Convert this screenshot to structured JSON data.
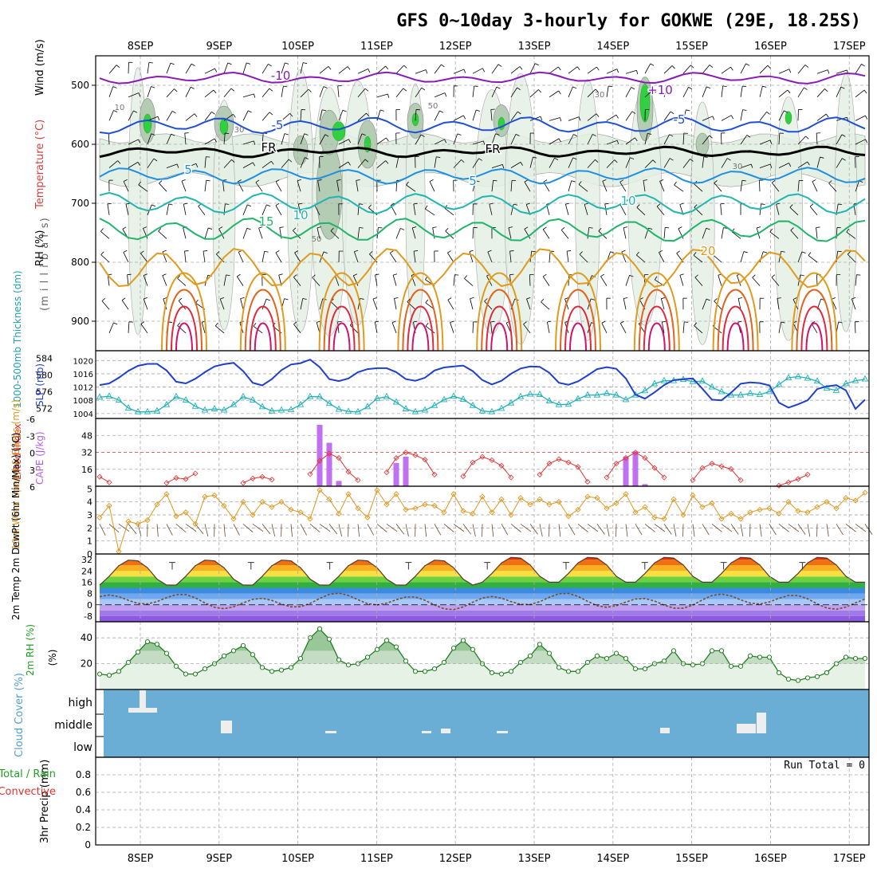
{
  "title": "GFS 0~10day 3-hourly for GOKWE (29E, 18.25S)",
  "day_labels": [
    "8SEP",
    "9SEP",
    "10SEP",
    "11SEP",
    "12SEP",
    "13SEP",
    "14SEP",
    "15SEP",
    "16SEP",
    "17SEP"
  ],
  "run_total_text": "Run Total = 0",
  "colors": {
    "temp_minus10": "#8a1ab8",
    "temp_minus5": "#1f4fd6",
    "temp_5": "#1f8fe0",
    "temp_10": "#20b5b0",
    "temp_15": "#20b46a",
    "temp_20": "#e09a1c",
    "temp_25": "#e0641c",
    "temp_30": "#e0283c",
    "rh_light": "#e4f0e4",
    "rh_mid": "#b4ccb4",
    "rh_dark": "#6e8a6e",
    "rh_green": "#30d040",
    "slp": "#1f3fd0",
    "thickness": "#20b0b8",
    "cape": "#c070f0",
    "lifted_index": "#e03030",
    "wind10m": "#e0961c",
    "cloud": "#6aaed6",
    "precip_total": "#20a020",
    "precip_conv": "#e03030"
  },
  "chart_data": [
    {
      "type": "heatmap",
      "panel": "upper-air",
      "ylabel_rh": "RH (%)",
      "ylabel_temp": "Temperature (°C)",
      "ylabel_wind": "Wind (m/s)",
      "ylabel_pressure": "(m i l l i b a r s)",
      "y_ticks": [
        500,
        600,
        700,
        800,
        900
      ],
      "ylim": [
        950,
        450
      ],
      "contour_labels": [
        "-10",
        "+10",
        "-5",
        "-5",
        "FR",
        "FR",
        "5",
        "5",
        "10",
        "10",
        "15",
        "20",
        "10",
        "30",
        "50",
        "50",
        "30",
        "30",
        "50"
      ],
      "isotherms": [
        {
          "name": "-10",
          "mean": 488,
          "amp": 6
        },
        {
          "name": "-5",
          "mean": 568,
          "amp": 10
        },
        {
          "name": "FR",
          "mean": 613,
          "amp": 5
        },
        {
          "name": "5",
          "mean": 653,
          "amp": 10
        },
        {
          "name": "10",
          "mean": 700,
          "amp": 14
        },
        {
          "name": "15",
          "mean": 745,
          "amp": 16
        },
        {
          "name": "20",
          "mean": 810,
          "amp": 30
        }
      ]
    },
    {
      "type": "line",
      "panel": "slp-thickness",
      "ylabel_left": "1000-500mb Thickness (dm)",
      "ylabel_right": "SLP (mb)",
      "thickness_ticks": [
        572,
        576,
        580,
        584
      ],
      "slp_ticks": [
        1004,
        1008,
        1012,
        1016,
        1020
      ],
      "x": [
        0,
        1,
        2,
        3,
        4,
        5,
        6,
        7,
        8,
        9,
        10,
        11,
        12,
        13,
        14,
        15,
        16,
        17,
        18,
        19,
        20,
        21,
        22,
        23,
        24,
        25,
        26,
        27,
        28,
        29,
        30,
        31,
        32,
        33,
        34,
        35,
        36,
        37,
        38,
        39,
        40,
        41,
        42,
        43,
        44,
        45,
        46,
        47,
        48,
        49,
        50,
        51,
        52,
        53,
        54,
        55,
        56,
        57,
        58,
        59,
        60,
        61,
        62,
        63,
        64,
        65,
        66,
        67,
        68,
        69,
        70,
        71,
        72,
        73,
        74,
        75,
        76,
        77,
        78,
        79,
        80
      ],
      "series": [
        {
          "name": "SLP",
          "values": [
            1012.6,
            1013.1,
            1014.8,
            1016.9,
            1018.4,
            1019.0,
            1019.0,
            1017.0,
            1013.6,
            1013.1,
            1014.5,
            1016.5,
            1018.2,
            1018.9,
            1019.3,
            1016.8,
            1013.3,
            1012.5,
            1014.4,
            1017.1,
            1018.8,
            1019.2,
            1020.3,
            1018.0,
            1014.4,
            1013.8,
            1014.6,
            1016.5,
            1017.4,
            1017.7,
            1017.7,
            1016.5,
            1014.4,
            1013.9,
            1014.8,
            1017.0,
            1017.9,
            1018.2,
            1018.5,
            1016.8,
            1014.1,
            1012.8,
            1013.9,
            1016.0,
            1017.6,
            1018.2,
            1018.1,
            1016.3,
            1013.3,
            1012.7,
            1013.7,
            1015.5,
            1017.4,
            1018.0,
            1017.5,
            1014.6,
            1009.7,
            1008.5,
            1010.4,
            1012.6,
            1014.1,
            1014.4,
            1014.6,
            1011.5,
            1008.2,
            1008.0,
            1010.3,
            1013.0,
            1013.4,
            1013.2,
            1012.5,
            1007.3,
            1005.8,
            1006.8,
            1008.0,
            1011.4,
            1012.2,
            1012.6,
            1011.0,
            1005.4,
            1008.2
          ]
        },
        {
          "name": "Thickness",
          "values": [
            574.7,
            574.9,
            574.0,
            572.1,
            571.2,
            571.2,
            571.4,
            572.9,
            574.8,
            574.0,
            572.5,
            571.6,
            571.9,
            571.6,
            572.9,
            574.8,
            574.0,
            572.4,
            571.4,
            571.6,
            571.7,
            572.9,
            574.8,
            574.8,
            573.2,
            571.8,
            571.3,
            571.2,
            572.4,
            574.4,
            574.8,
            573.5,
            571.9,
            571.2,
            571.6,
            572.7,
            574.1,
            574.9,
            574.2,
            572.7,
            571.4,
            571.2,
            572.0,
            573.3,
            574.8,
            575.4,
            575.3,
            573.8,
            572.9,
            573.0,
            574.3,
            575.2,
            575.2,
            575.6,
            575.2,
            574.1,
            575.2,
            576.2,
            577.9,
            578.6,
            578.6,
            578.9,
            578.4,
            578.5,
            577.1,
            576.0,
            575.2,
            575.2,
            575.6,
            575.3,
            576.0,
            577.7,
            579.3,
            579.6,
            579.2,
            578.5,
            576.8,
            576.3,
            577.9,
            578.6,
            579.0
          ]
        }
      ]
    },
    {
      "type": "bar",
      "panel": "cape-li",
      "ylabel_left": "Lifted Index",
      "ylabel_right": "CAPE (J/kg)",
      "li_ticks": [
        "-6",
        "-3",
        "0",
        "3",
        "6"
      ],
      "cape_ticks": [
        16,
        32,
        48
      ],
      "cape_bars": [
        {
          "x": 23,
          "value": 58
        },
        {
          "x": 24,
          "value": 41
        },
        {
          "x": 25,
          "value": 5
        },
        {
          "x": 31,
          "value": 22
        },
        {
          "x": 32,
          "value": 28
        },
        {
          "x": 55,
          "value": 28
        },
        {
          "x": 56,
          "value": 33
        },
        {
          "x": 57,
          "value": 2
        }
      ],
      "li_lines": [
        {
          "x": [
            0,
            1
          ],
          "values": [
            4.4,
            5.4
          ]
        },
        {
          "x": [
            7,
            8,
            9,
            10
          ],
          "values": [
            5.5,
            4.6,
            4.8,
            3.8
          ]
        },
        {
          "x": [
            15,
            16,
            17,
            18
          ],
          "values": [
            5.5,
            4.7,
            4.4,
            4.9
          ]
        },
        {
          "x": [
            22,
            23,
            24,
            25,
            26,
            27
          ],
          "values": [
            3.9,
            1.5,
            0.2,
            1.0,
            3.5,
            5.0
          ]
        },
        {
          "x": [
            30,
            31,
            32,
            33,
            34,
            35
          ],
          "values": [
            3.6,
            1.0,
            0.0,
            0.5,
            1.3,
            4.0
          ]
        },
        {
          "x": [
            38,
            39,
            40,
            41,
            42,
            43
          ],
          "values": [
            4.3,
            1.8,
            0.8,
            1.4,
            2.4,
            4.5
          ]
        },
        {
          "x": [
            46,
            47,
            48,
            49,
            50,
            51
          ],
          "values": [
            4.0,
            2.0,
            1.2,
            1.8,
            2.6,
            5.3
          ]
        },
        {
          "x": [
            53,
            54,
            55,
            56,
            57,
            58,
            59
          ],
          "values": [
            4.5,
            2.0,
            1.0,
            0.0,
            1.0,
            2.8,
            4.5
          ]
        },
        {
          "x": [
            62,
            63,
            64,
            65,
            66,
            67
          ],
          "values": [
            5.0,
            2.8,
            2.0,
            2.5,
            3.0,
            5.0
          ]
        },
        {
          "x": [
            71,
            72,
            73,
            74
          ],
          "values": [
            6.0,
            5.4,
            4.8,
            4.0
          ]
        }
      ]
    },
    {
      "type": "line",
      "panel": "wind10m",
      "ylabel": "10m Wind Speed & Barbs (m/s)",
      "y_ticks": [
        0,
        1,
        2,
        3,
        4,
        5
      ],
      "ylim": [
        0,
        5
      ],
      "x": [
        0,
        1,
        2,
        3,
        4,
        5,
        6,
        7,
        8,
        9,
        10,
        11,
        12,
        13,
        14,
        15,
        16,
        17,
        18,
        19,
        20,
        21,
        22,
        23,
        24,
        25,
        26,
        27,
        28,
        29,
        30,
        31,
        32,
        33,
        34,
        35,
        36,
        37,
        38,
        39,
        40,
        41,
        42,
        43,
        44,
        45,
        46,
        47,
        48,
        49,
        50,
        51,
        52,
        53,
        54,
        55,
        56,
        57,
        58,
        59,
        60,
        61,
        62,
        63,
        64,
        65,
        66,
        67,
        68,
        69,
        70,
        71,
        72,
        73,
        74,
        75,
        76,
        77,
        78,
        79,
        80
      ],
      "values": [
        2.8,
        3.7,
        0.2,
        2.5,
        2.3,
        2.6,
        3.8,
        4.6,
        2.9,
        3.2,
        2.3,
        4.4,
        4.5,
        3.7,
        2.7,
        4.0,
        3.0,
        4.0,
        3.6,
        4.0,
        3.4,
        3.2,
        2.7,
        4.9,
        4.2,
        3.1,
        4.6,
        3.5,
        2.8,
        4.9,
        3.8,
        4.6,
        3.4,
        3.5,
        3.8,
        3.7,
        3.2,
        4.6,
        3.3,
        3.1,
        4.4,
        3.2,
        4.2,
        3.0,
        4.3,
        3.8,
        4.2,
        3.8,
        4.0,
        2.9,
        3.4,
        4.4,
        4.3,
        3.5,
        3.9,
        4.6,
        3.2,
        3.6,
        2.8,
        2.7,
        4.2,
        3.0,
        4.5,
        3.6,
        3.9,
        2.7,
        3.1,
        2.7,
        3.2,
        3.4,
        3.5,
        3.1,
        4.0,
        3.3,
        3.2,
        3.6,
        4.0,
        3.5,
        4.3,
        4.1,
        4.7
      ]
    },
    {
      "type": "area",
      "panel": "temp2m",
      "ylabel": "2m Temp 2m DewPt (6hr Min/Max) (°C)",
      "y_ticks": [
        -8,
        0,
        8,
        16,
        24,
        32
      ],
      "ylim": [
        -12,
        36
      ],
      "temp_min": 16,
      "temp_max": 34,
      "dewpt_min": -3,
      "dewpt_max": 8
    },
    {
      "type": "area",
      "panel": "rh2m",
      "ylabel": "2m RH (%)",
      "y_ticks": [
        20,
        40
      ],
      "ylim": [
        0,
        50
      ],
      "x": [
        0,
        1,
        2,
        3,
        4,
        5,
        6,
        7,
        8,
        9,
        10,
        11,
        12,
        13,
        14,
        15,
        16,
        17,
        18,
        19,
        20,
        21,
        22,
        23,
        24,
        25,
        26,
        27,
        28,
        29,
        30,
        31,
        32,
        33,
        34,
        35,
        36,
        37,
        38,
        39,
        40,
        41,
        42,
        43,
        44,
        45,
        46,
        47,
        48,
        49,
        50,
        51,
        52,
        53,
        54,
        55,
        56,
        57,
        58,
        59,
        60,
        61,
        62,
        63,
        64,
        65,
        66,
        67,
        68,
        69,
        70,
        71,
        72,
        73,
        74,
        75,
        76,
        77,
        78,
        79,
        80
      ],
      "values": [
        12,
        11,
        14,
        21,
        29,
        37,
        35,
        28,
        18,
        12,
        12,
        16,
        20,
        26,
        30,
        34,
        27,
        17,
        14,
        15,
        17,
        24,
        40,
        47,
        39,
        23,
        19,
        20,
        25,
        31,
        38,
        33,
        22,
        14,
        14,
        16,
        21,
        32,
        38,
        31,
        20,
        13,
        12,
        14,
        21,
        26,
        35,
        28,
        17,
        14,
        14,
        21,
        26,
        24,
        28,
        24,
        16,
        16,
        20,
        22,
        30,
        20,
        19,
        20,
        30,
        30,
        18,
        18,
        26,
        25,
        25,
        13,
        8,
        7,
        9,
        10,
        13,
        20,
        25,
        24,
        24
      ]
    },
    {
      "type": "bar",
      "panel": "cloud",
      "ylabel": "Cloud Cover (%)",
      "levels": [
        "high",
        "middle",
        "low"
      ]
    },
    {
      "type": "bar",
      "panel": "precip",
      "ylabel": "3hr Precip (mm)",
      "legend_total": "Total / Rain",
      "legend_conv": "Convective",
      "y_ticks": [
        "0",
        "0.2",
        "0.4",
        "0.6",
        "0.8"
      ],
      "ylim": [
        0,
        1
      ]
    }
  ]
}
